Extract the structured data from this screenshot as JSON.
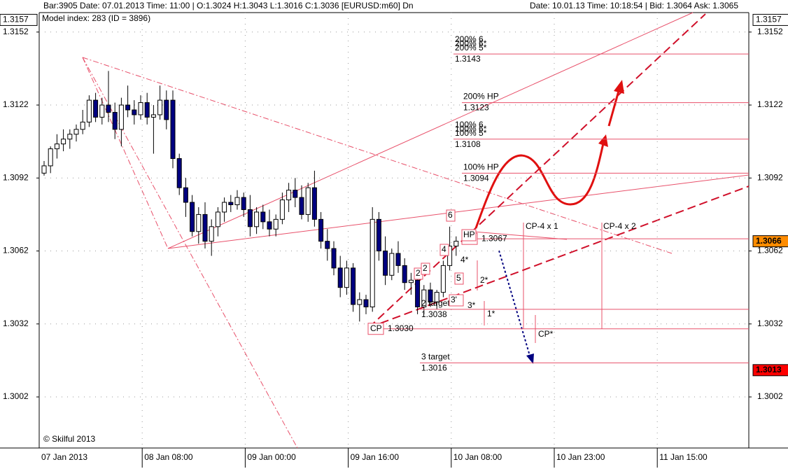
{
  "chart_data": {
    "type": "candlestick",
    "header_left": "Bar:3905  Date: 07.01.2013  Time: 11:00  |  O:1.3024  H:1.3043  L:1.3016  C:1.3036   [EURUSD:m60]  Dn",
    "header_right": "Date: 10.01.13  Time: 10:18:54  |  Bid: 1.3064  Ask: 1.3065",
    "subtitle": "Model index: 283  (ID = 3896)",
    "footer": "© Skilful 2013",
    "categories": [
      "07 Jan 2013",
      null,
      null,
      null,
      null,
      null,
      null,
      null,
      null,
      null,
      null,
      null,
      null,
      null,
      null,
      null,
      "08 Jan 08:00",
      null,
      null,
      null,
      null,
      null,
      null,
      null,
      null,
      null,
      null,
      null,
      null,
      null,
      null,
      null,
      "09 Jan 00:00",
      null,
      null,
      null,
      null,
      null,
      null,
      null,
      null,
      null,
      null,
      null,
      null,
      null,
      null,
      null,
      "09 Jan 16:00",
      null,
      null,
      null,
      null,
      null,
      null,
      null,
      null,
      null,
      null,
      null,
      null,
      null,
      null,
      null,
      "10 Jan 08:00",
      null,
      null,
      null,
      null,
      null,
      null,
      null,
      null,
      null,
      null,
      null,
      null,
      null,
      null,
      null,
      "10 Jan 23:00",
      null,
      null,
      null,
      null,
      null,
      null,
      null,
      null,
      null,
      null,
      null,
      null,
      null,
      null,
      null,
      "11 Jan 15:00",
      null,
      null,
      null,
      null,
      null,
      null,
      null,
      null,
      null,
      null,
      null,
      null,
      null
    ],
    "open": [
      1.3094,
      1.3097,
      1.3104,
      1.3106,
      1.3108,
      1.311,
      1.3112,
      1.3115,
      1.3124,
      1.3117,
      1.3122,
      1.3119,
      1.3112,
      1.3122,
      1.312,
      1.3118,
      1.3123,
      1.3117,
      1.3118,
      1.3124,
      1.3124,
      1.31,
      1.3088,
      1.3082,
      1.307,
      1.3077,
      1.3066,
      1.3072,
      1.3078,
      1.3082,
      1.3081,
      1.3084,
      1.3079,
      1.3072,
      1.3078,
      1.3074,
      1.3071,
      1.3075,
      1.3083,
      1.3087,
      1.3084,
      1.3077,
      1.3088,
      1.3075,
      1.3066,
      1.3063,
      1.3055,
      1.3047,
      1.3055,
      1.304,
      1.3042,
      1.3039,
      1.3075,
      1.3062,
      1.3052,
      1.3061,
      1.3056,
      1.3049,
      1.305,
      1.3039,
      1.3046,
      1.3041,
      1.3045,
      1.3056,
      1.3064,
      null,
      null,
      null,
      null,
      null,
      null,
      null,
      null,
      null,
      null,
      null,
      null,
      null,
      null,
      null,
      null,
      null,
      null,
      null,
      null,
      null,
      null,
      null,
      null,
      null,
      null,
      null,
      null,
      null,
      null,
      null,
      null,
      null,
      null,
      null,
      null,
      null,
      null,
      null,
      null,
      null,
      null,
      null,
      null,
      null
    ],
    "high": [
      1.3099,
      1.3105,
      1.311,
      1.3112,
      1.3112,
      1.3114,
      1.312,
      1.3126,
      1.3127,
      1.3125,
      1.3136,
      1.3123,
      1.3125,
      1.313,
      1.3124,
      1.3126,
      1.3127,
      1.3122,
      1.313,
      1.3128,
      1.3128,
      1.3102,
      1.3092,
      1.3085,
      1.308,
      1.3082,
      1.3075,
      1.308,
      1.3084,
      1.3085,
      1.3087,
      1.3086,
      1.3085,
      1.308,
      1.3081,
      1.3079,
      1.3077,
      1.3086,
      1.309,
      1.3092,
      1.3089,
      1.309,
      1.3095,
      1.3078,
      1.3071,
      1.3066,
      1.306,
      1.3058,
      1.3057,
      1.3045,
      1.3044,
      1.308,
      1.3078,
      1.3068,
      1.3063,
      1.3066,
      1.3059,
      1.3053,
      1.3052,
      1.3048,
      1.3049,
      1.3046,
      1.3058,
      1.3072,
      1.3068,
      null,
      null,
      null,
      null,
      null,
      null,
      null,
      null,
      null,
      null,
      null,
      null,
      null,
      null,
      null,
      null,
      null,
      null,
      null,
      null,
      null,
      null,
      null,
      null,
      null,
      null,
      null,
      null,
      null,
      null,
      null,
      null,
      null,
      null,
      null,
      null,
      null,
      null,
      null,
      null,
      null,
      null,
      null,
      null,
      null
    ],
    "low": [
      1.3093,
      1.3094,
      1.31,
      1.3103,
      1.3104,
      1.3107,
      1.311,
      1.3113,
      1.3115,
      1.3114,
      1.3115,
      1.3108,
      1.3105,
      1.3117,
      1.3114,
      1.3116,
      1.3114,
      1.3102,
      1.3116,
      1.3112,
      1.3096,
      1.3085,
      1.3076,
      1.3068,
      1.3065,
      1.3063,
      1.306,
      1.3068,
      1.3074,
      1.3078,
      1.3079,
      1.3076,
      1.3068,
      1.3069,
      1.3071,
      1.3068,
      1.3068,
      1.3073,
      1.3078,
      1.308,
      1.3075,
      1.3074,
      1.3072,
      1.3063,
      1.3058,
      1.3052,
      1.3043,
      1.3044,
      1.3037,
      1.3033,
      1.3036,
      1.3037,
      1.3058,
      1.3048,
      1.305,
      1.3053,
      1.3046,
      1.3044,
      1.3036,
      1.3036,
      1.3039,
      1.3038,
      1.3043,
      1.3054,
      1.306,
      null,
      null,
      null,
      null,
      null,
      null,
      null,
      null,
      null,
      null,
      null,
      null,
      null,
      null,
      null,
      null,
      null,
      null,
      null,
      null,
      null,
      null,
      null,
      null,
      null,
      null,
      null,
      null,
      null,
      null,
      null,
      null,
      null,
      null,
      null,
      null,
      null,
      null,
      null,
      null,
      null,
      null,
      null,
      null,
      null
    ],
    "close": [
      1.3097,
      1.3104,
      1.3106,
      1.3108,
      1.311,
      1.3112,
      1.3115,
      1.3124,
      1.3117,
      1.3122,
      1.3119,
      1.3112,
      1.3122,
      1.312,
      1.3118,
      1.3123,
      1.3117,
      1.3118,
      1.3124,
      1.3116,
      1.31,
      1.3088,
      1.3082,
      1.307,
      1.3077,
      1.3066,
      1.3072,
      1.3078,
      1.3082,
      1.3081,
      1.3084,
      1.3079,
      1.3072,
      1.3078,
      1.3074,
      1.3071,
      1.3075,
      1.3083,
      1.3087,
      1.3084,
      1.3077,
      1.3088,
      1.3075,
      1.3066,
      1.3063,
      1.3055,
      1.3047,
      1.3055,
      1.304,
      1.3042,
      1.3039,
      1.3075,
      1.3062,
      1.3052,
      1.3061,
      1.3056,
      1.3049,
      1.305,
      1.3039,
      1.3046,
      1.3041,
      1.3045,
      1.3056,
      1.3064,
      1.3066,
      null,
      null,
      null,
      null,
      null,
      null,
      null,
      null,
      null,
      null,
      null,
      null,
      null,
      null,
      null,
      null,
      null,
      null,
      null,
      null,
      null,
      null,
      null,
      null,
      null,
      null,
      null,
      null,
      null,
      null,
      null,
      null,
      null,
      null,
      null,
      null,
      null,
      null,
      null,
      null,
      null,
      null,
      null,
      null,
      null
    ],
    "up_color": "#ffffff",
    "down_color": "#000080",
    "ylim": [
      1.2981,
      1.316
    ],
    "yticks": [
      1.3002,
      1.3032,
      1.3062,
      1.3092,
      1.3122,
      1.3152
    ],
    "top_value": 1.3157,
    "grid": true,
    "levels": [
      {
        "labels": [
          "200% 6",
          "200% 6*",
          "200% 5*"
        ],
        "value": 1.3143
      },
      {
        "labels": [
          "200% HP"
        ],
        "value": 1.3123
      },
      {
        "labels": [
          "100% 6",
          "100% 6*",
          "100% 5*"
        ],
        "value": 1.3108
      },
      {
        "labels": [
          "100% HP"
        ],
        "value": 1.3094
      },
      {
        "labels": [
          "HP"
        ],
        "value": 1.3067
      },
      {
        "labels": [
          "2 target"
        ],
        "value": 1.3038
      },
      {
        "labels": [
          "CP"
        ],
        "value": {
          "value": 1.303,
          "label": "1.3030"
        }
      },
      {
        "labels": [
          "3 target"
        ],
        "value": 1.3016
      }
    ],
    "price_markers": [
      {
        "value": 1.3066,
        "color": "#ff8c00"
      },
      {
        "value": 1.3013,
        "color": "#ff0000"
      }
    ],
    "point_labels": [
      "6",
      "4",
      "2",
      "2",
      "5",
      "3'",
      "4*",
      "2*",
      "3*",
      "1*",
      "CP*",
      "CP-4 x 1",
      "CP-4 x 2",
      "HP"
    ]
  }
}
